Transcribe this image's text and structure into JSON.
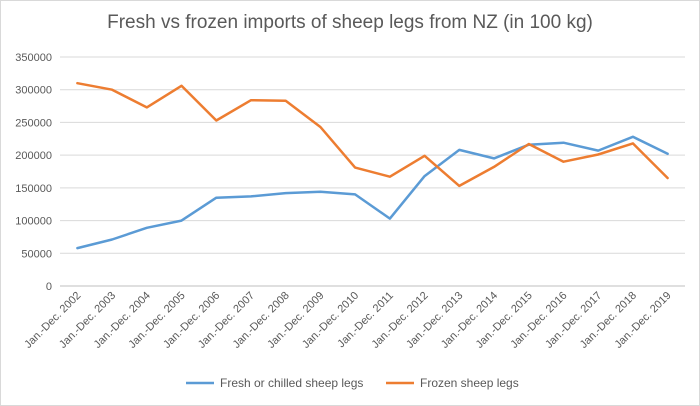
{
  "chart_data": {
    "type": "line",
    "title": "Fresh vs frozen imports of sheep legs from NZ (in 100 kg)",
    "xlabel": "",
    "ylabel": "",
    "categories": [
      "Jan.-Dec. 2002",
      "Jan.-Dec. 2003",
      "Jan.-Dec. 2004",
      "Jan.-Dec. 2005",
      "Jan.-Dec. 2006",
      "Jan.-Dec. 2007",
      "Jan.-Dec. 2008",
      "Jan.-Dec. 2009",
      "Jan.-Dec. 2010",
      "Jan.-Dec. 2011",
      "Jan.-Dec. 2012",
      "Jan.-Dec. 2013",
      "Jan.-Dec. 2014",
      "Jan.-Dec. 2015",
      "Jan.-Dec. 2016",
      "Jan.-Dec. 2017",
      "Jan.-Dec. 2018",
      "Jan.-Dec. 2019"
    ],
    "ylim": [
      0,
      350000
    ],
    "yticks": [
      0,
      50000,
      100000,
      150000,
      200000,
      250000,
      300000,
      350000
    ],
    "grid": true,
    "legend": "bottom",
    "series": [
      {
        "name": "Fresh or chilled sheep legs",
        "color": "#5b9bd5",
        "values": [
          58000,
          71000,
          89000,
          100000,
          135000,
          137000,
          142000,
          144000,
          140000,
          103000,
          168000,
          208000,
          195000,
          216000,
          219000,
          207000,
          228000,
          202000
        ]
      },
      {
        "name": "Frozen sheep legs",
        "color": "#ed7d31",
        "values": [
          310000,
          300000,
          273000,
          306000,
          253000,
          284000,
          283000,
          243000,
          181000,
          167000,
          199000,
          153000,
          182000,
          217000,
          190000,
          201000,
          218000,
          165000
        ]
      }
    ]
  }
}
